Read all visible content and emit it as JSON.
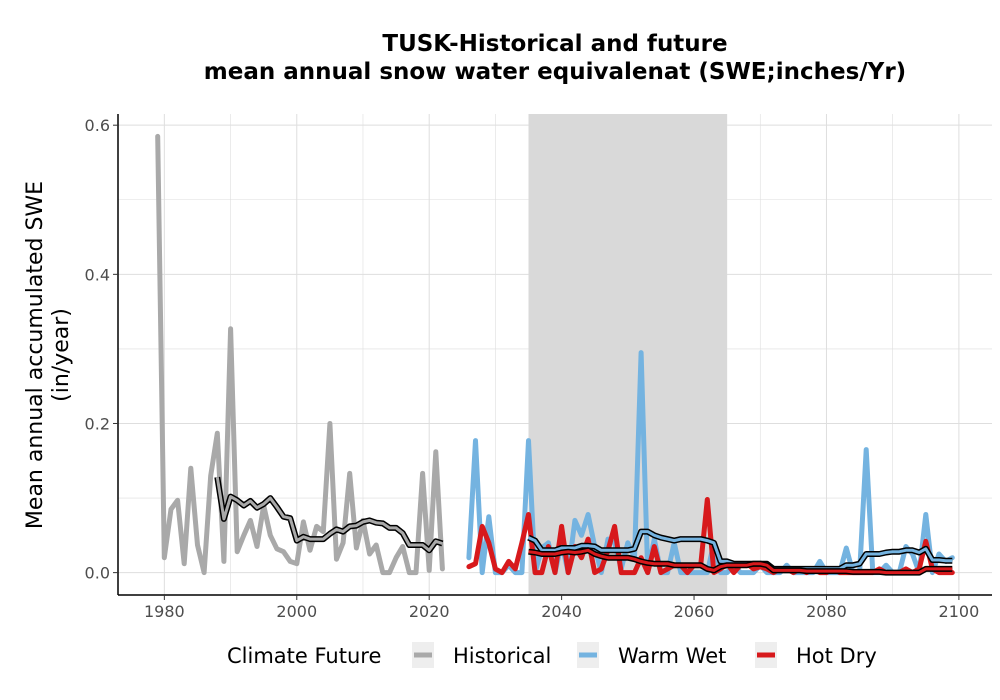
{
  "chart_data": {
    "type": "line",
    "title_line1": "TUSK-Historical and future",
    "title_line2": "mean annual snow water equivalenat (SWE;inches/Yr)",
    "xlabel": "",
    "ylabel_line1": "Mean annual accumulated SWE",
    "ylabel_line2": "(in/year)",
    "xlim": [
      1973,
      2105
    ],
    "ylim": [
      -0.03,
      0.615
    ],
    "x_ticks": [
      1980,
      2000,
      2020,
      2040,
      2060,
      2080,
      2100
    ],
    "x_tick_labels": [
      "1980",
      "2000",
      "2020",
      "2040",
      "2060",
      "2080",
      "2100"
    ],
    "y_ticks": [
      0.0,
      0.2,
      0.4,
      0.6
    ],
    "y_tick_labels": [
      "0.0",
      "0.2",
      "0.4",
      "0.6"
    ],
    "grid": true,
    "shaded_period": [
      2035,
      2065
    ],
    "legend_title": "Climate Future",
    "legend_position": "bottom",
    "series": [
      {
        "name": "Historical",
        "color": "#a9a9a9",
        "x": [
          1979,
          1980,
          1981,
          1982,
          1983,
          1984,
          1985,
          1986,
          1987,
          1988,
          1989,
          1990,
          1991,
          1992,
          1993,
          1994,
          1995,
          1996,
          1997,
          1998,
          1999,
          2000,
          2001,
          2002,
          2003,
          2004,
          2005,
          2006,
          2007,
          2008,
          2009,
          2010,
          2011,
          2012,
          2013,
          2014,
          2015,
          2016,
          2017,
          2018,
          2019,
          2020,
          2021,
          2022
        ],
        "y": [
          0.585,
          0.02,
          0.085,
          0.097,
          0.012,
          0.14,
          0.037,
          0.0,
          0.13,
          0.187,
          0.015,
          0.327,
          0.028,
          0.05,
          0.07,
          0.035,
          0.09,
          0.05,
          0.032,
          0.028,
          0.015,
          0.012,
          0.068,
          0.03,
          0.062,
          0.055,
          0.2,
          0.018,
          0.04,
          0.133,
          0.033,
          0.07,
          0.025,
          0.037,
          0.0,
          0.0,
          0.02,
          0.035,
          0.0,
          0.0,
          0.133,
          0.003,
          0.162,
          0.005
        ],
        "moving_average": {
          "x": [
            1988,
            1989,
            1990,
            1991,
            1992,
            1993,
            1994,
            1995,
            1996,
            1997,
            1998,
            1999,
            2000,
            2001,
            2002,
            2003,
            2004,
            2005,
            2006,
            2007,
            2008,
            2009,
            2010,
            2011,
            2012,
            2013,
            2014,
            2015,
            2016,
            2017,
            2018,
            2019,
            2020,
            2021,
            2022
          ],
          "y": [
            0.128,
            0.072,
            0.102,
            0.097,
            0.09,
            0.096,
            0.087,
            0.092,
            0.1,
            0.088,
            0.075,
            0.073,
            0.043,
            0.048,
            0.045,
            0.045,
            0.045,
            0.052,
            0.058,
            0.055,
            0.062,
            0.063,
            0.068,
            0.07,
            0.067,
            0.066,
            0.06,
            0.06,
            0.053,
            0.037,
            0.037,
            0.037,
            0.03,
            0.042,
            0.039
          ]
        }
      },
      {
        "name": "Warm Wet",
        "color": "#74b3e0",
        "x": [
          2026,
          2027,
          2028,
          2029,
          2030,
          2031,
          2032,
          2033,
          2034,
          2035,
          2036,
          2037,
          2038,
          2039,
          2040,
          2041,
          2042,
          2043,
          2044,
          2045,
          2046,
          2047,
          2048,
          2049,
          2050,
          2051,
          2052,
          2053,
          2054,
          2055,
          2056,
          2057,
          2058,
          2059,
          2060,
          2061,
          2062,
          2063,
          2064,
          2065,
          2066,
          2067,
          2068,
          2069,
          2070,
          2071,
          2072,
          2073,
          2074,
          2075,
          2076,
          2077,
          2078,
          2079,
          2080,
          2081,
          2082,
          2083,
          2084,
          2085,
          2086,
          2087,
          2088,
          2089,
          2090,
          2091,
          2092,
          2093,
          2094,
          2095,
          2096,
          2097,
          2098,
          2099
        ],
        "y": [
          0.02,
          0.177,
          0.0,
          0.075,
          0.0,
          0.0,
          0.01,
          0.0,
          0.0,
          0.177,
          0.0,
          0.033,
          0.04,
          0.0,
          0.04,
          0.0,
          0.07,
          0.05,
          0.078,
          0.035,
          0.0,
          0.045,
          0.04,
          0.005,
          0.04,
          0.02,
          0.295,
          0.0,
          0.045,
          0.0,
          0.0,
          0.04,
          0.0,
          0.0,
          0.0,
          0.0,
          0.0,
          0.04,
          0.0,
          0.0,
          0.01,
          0.0,
          0.0,
          0.0,
          0.01,
          0.0,
          0.0,
          0.0,
          0.01,
          0.0,
          0.0,
          0.0,
          0.0,
          0.015,
          0.0,
          0.0,
          0.0,
          0.033,
          0.0,
          0.0,
          0.165,
          0.0,
          0.0,
          0.01,
          0.0,
          0.0,
          0.035,
          0.025,
          0.0,
          0.078,
          0.0,
          0.025,
          0.015,
          0.02
        ],
        "moving_average": {
          "x": [
            2035,
            2036,
            2037,
            2038,
            2039,
            2040,
            2041,
            2042,
            2043,
            2044,
            2045,
            2046,
            2047,
            2048,
            2049,
            2050,
            2051,
            2052,
            2053,
            2054,
            2055,
            2056,
            2057,
            2058,
            2059,
            2060,
            2061,
            2062,
            2063,
            2064,
            2065,
            2066,
            2067,
            2068,
            2069,
            2070,
            2071,
            2072,
            2073,
            2074,
            2075,
            2076,
            2077,
            2078,
            2079,
            2080,
            2081,
            2082,
            2083,
            2084,
            2085,
            2086,
            2087,
            2088,
            2089,
            2090,
            2091,
            2092,
            2093,
            2094,
            2095,
            2096,
            2097,
            2098,
            2099
          ],
          "y": [
            0.047,
            0.043,
            0.03,
            0.03,
            0.03,
            0.033,
            0.033,
            0.033,
            0.036,
            0.036,
            0.035,
            0.03,
            0.03,
            0.03,
            0.03,
            0.03,
            0.032,
            0.055,
            0.055,
            0.05,
            0.047,
            0.045,
            0.043,
            0.045,
            0.045,
            0.045,
            0.045,
            0.043,
            0.04,
            0.015,
            0.015,
            0.012,
            0.012,
            0.012,
            0.012,
            0.012,
            0.012,
            0.005,
            0.005,
            0.005,
            0.005,
            0.005,
            0.005,
            0.005,
            0.005,
            0.005,
            0.005,
            0.005,
            0.01,
            0.01,
            0.012,
            0.025,
            0.025,
            0.025,
            0.027,
            0.028,
            0.028,
            0.03,
            0.03,
            0.027,
            0.032,
            0.017,
            0.017,
            0.016,
            0.016
          ]
        }
      },
      {
        "name": "Hot Dry",
        "color": "#d7191c",
        "x": [
          2026,
          2027,
          2028,
          2029,
          2030,
          2031,
          2032,
          2033,
          2034,
          2035,
          2036,
          2037,
          2038,
          2039,
          2040,
          2041,
          2042,
          2043,
          2044,
          2045,
          2046,
          2047,
          2048,
          2049,
          2050,
          2051,
          2052,
          2053,
          2054,
          2055,
          2056,
          2057,
          2058,
          2059,
          2060,
          2061,
          2062,
          2063,
          2064,
          2065,
          2066,
          2067,
          2068,
          2069,
          2070,
          2071,
          2072,
          2073,
          2074,
          2075,
          2076,
          2077,
          2078,
          2079,
          2080,
          2081,
          2082,
          2083,
          2084,
          2085,
          2086,
          2087,
          2088,
          2089,
          2090,
          2091,
          2092,
          2093,
          2094,
          2095,
          2096,
          2097,
          2098,
          2099
        ],
        "y": [
          0.008,
          0.012,
          0.062,
          0.04,
          0.005,
          0.0,
          0.015,
          0.005,
          0.04,
          0.078,
          0.0,
          0.0,
          0.035,
          0.0,
          0.062,
          0.0,
          0.035,
          0.02,
          0.045,
          0.0,
          0.005,
          0.03,
          0.062,
          0.0,
          0.0,
          0.0,
          0.02,
          0.0,
          0.035,
          0.0,
          0.005,
          0.01,
          0.01,
          0.0,
          0.01,
          0.01,
          0.098,
          0.0,
          0.005,
          0.012,
          0.0,
          0.01,
          0.012,
          0.005,
          0.008,
          0.005,
          0.0,
          0.005,
          0.005,
          0.0,
          0.005,
          0.0,
          0.005,
          0.0,
          0.0,
          0.005,
          0.0,
          0.0,
          0.0,
          0.0,
          0.0,
          0.0,
          0.005,
          0.0,
          0.0,
          0.0,
          0.005,
          0.0,
          0.005,
          0.042,
          0.005,
          0.0,
          0.0,
          0.0
        ],
        "moving_average": {
          "x": [
            2035,
            2036,
            2037,
            2038,
            2039,
            2040,
            2041,
            2042,
            2043,
            2044,
            2045,
            2046,
            2047,
            2048,
            2049,
            2050,
            2051,
            2052,
            2053,
            2054,
            2055,
            2056,
            2057,
            2058,
            2059,
            2060,
            2061,
            2062,
            2063,
            2064,
            2065,
            2066,
            2067,
            2068,
            2069,
            2070,
            2071,
            2072,
            2073,
            2074,
            2075,
            2076,
            2077,
            2078,
            2079,
            2080,
            2081,
            2082,
            2083,
            2084,
            2085,
            2086,
            2087,
            2088,
            2089,
            2090,
            2091,
            2092,
            2093,
            2094,
            2095,
            2096,
            2097,
            2098,
            2099
          ],
          "y": [
            0.028,
            0.027,
            0.025,
            0.025,
            0.025,
            0.027,
            0.028,
            0.027,
            0.028,
            0.03,
            0.025,
            0.022,
            0.02,
            0.02,
            0.02,
            0.02,
            0.018,
            0.015,
            0.013,
            0.012,
            0.012,
            0.012,
            0.01,
            0.01,
            0.01,
            0.01,
            0.01,
            0.005,
            0.003,
            0.008,
            0.01,
            0.01,
            0.01,
            0.01,
            0.012,
            0.012,
            0.01,
            0.003,
            0.003,
            0.003,
            0.003,
            0.003,
            0.002,
            0.002,
            0.002,
            0.002,
            0.002,
            0.002,
            0.002,
            0.001,
            0.001,
            0.001,
            0.001,
            0.001,
            0.0,
            0.0,
            0.0,
            0.0,
            0.0,
            0.0,
            0.005,
            0.005,
            0.005,
            0.005,
            0.005
          ]
        }
      }
    ]
  }
}
